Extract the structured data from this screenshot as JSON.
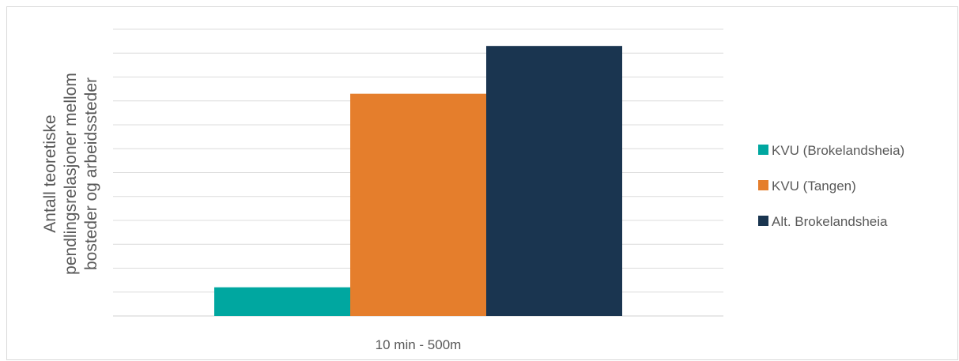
{
  "chart_data": {
    "type": "bar",
    "title": "",
    "categories": [
      "10 min - 500m"
    ],
    "ylabel_lines": [
      "Antall teoretiske",
      "pendlingsrelasjoner mellom",
      "bosteder og arbeidssteder"
    ],
    "xlabel": "",
    "ylim": [
      0,
      11
    ],
    "grid": true,
    "legend_position": "right",
    "series": [
      {
        "name": "KVU (Brokelandsheia)",
        "values": [
          1.2
        ],
        "color": "#00a7a0"
      },
      {
        "name": "KVU (Tangen)",
        "values": [
          9.3
        ],
        "color": "#e57e2c"
      },
      {
        "name": "Alt. Brokelandsheia",
        "values": [
          11.3
        ],
        "color": "#1a3550"
      }
    ]
  }
}
